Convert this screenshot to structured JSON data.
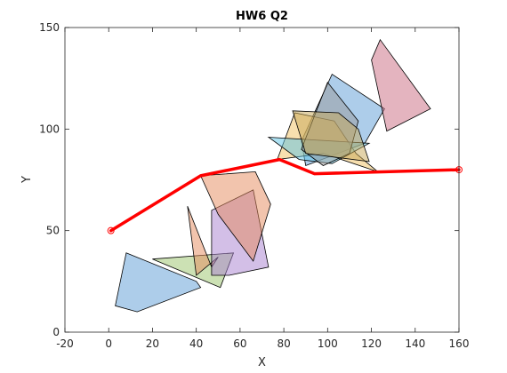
{
  "chart_data": {
    "type": "line",
    "title": "HW6 Q2",
    "xlabel": "X",
    "ylabel": "Y",
    "xlim": [
      -20,
      160
    ],
    "ylim": [
      0,
      150
    ],
    "xticks": [
      -20,
      0,
      20,
      40,
      60,
      80,
      100,
      120,
      140,
      160
    ],
    "yticks": [
      0,
      50,
      100,
      150
    ],
    "grid": false,
    "obstacles": [
      {
        "color": "#5b9bd5",
        "points": [
          [
            8,
            39
          ],
          [
            40,
            25
          ],
          [
            42,
            22
          ],
          [
            13,
            10
          ],
          [
            3,
            13
          ]
        ]
      },
      {
        "color": "#9ac46a",
        "points": [
          [
            20,
            36
          ],
          [
            57,
            39
          ],
          [
            51,
            22
          ]
        ]
      },
      {
        "color": "#e58a5c",
        "points": [
          [
            36,
            62
          ],
          [
            47,
            32
          ],
          [
            50,
            37
          ],
          [
            40,
            28
          ]
        ]
      },
      {
        "color": "#a77fd0",
        "points": [
          [
            47,
            60
          ],
          [
            66,
            70
          ],
          [
            73,
            32
          ],
          [
            55,
            28
          ],
          [
            47,
            28
          ]
        ]
      },
      {
        "color": "#e58a5c",
        "points": [
          [
            42,
            77
          ],
          [
            67,
            79
          ],
          [
            74,
            63
          ],
          [
            66,
            35
          ],
          [
            50,
            58
          ]
        ]
      },
      {
        "color": "#5b9bd5",
        "points": [
          [
            102,
            127
          ],
          [
            126,
            110
          ],
          [
            117,
            93
          ],
          [
            90,
            82
          ],
          [
            88,
            94
          ]
        ]
      },
      {
        "color": "#f0c060",
        "points": [
          [
            85,
            108
          ],
          [
            103,
            104
          ],
          [
            113,
            88
          ],
          [
            123,
            79
          ],
          [
            98,
            88
          ],
          [
            77,
            85
          ]
        ]
      },
      {
        "color": "#5bc3e6",
        "points": [
          [
            73,
            96
          ],
          [
            119,
            93
          ],
          [
            102,
            83
          ],
          [
            87,
            85
          ]
        ]
      },
      {
        "color": "#9a9a9a",
        "points": [
          [
            100,
            123
          ],
          [
            114,
            104
          ],
          [
            110,
            88
          ],
          [
            98,
            82
          ],
          [
            88,
            90
          ]
        ]
      },
      {
        "color": "#c7a855",
        "points": [
          [
            84,
            109
          ],
          [
            105,
            108
          ],
          [
            114,
            100
          ],
          [
            119,
            84
          ],
          [
            90,
            88
          ]
        ]
      },
      {
        "color": "#c96a80",
        "points": [
          [
            124,
            144
          ],
          [
            147,
            110
          ],
          [
            127,
            99
          ],
          [
            120,
            134
          ]
        ]
      }
    ],
    "series": [
      {
        "color": "#ff0000",
        "x": [
          1,
          42,
          78,
          94,
          160
        ],
        "y": [
          50,
          77,
          85,
          78,
          80
        ]
      }
    ],
    "markers": [
      {
        "x": 1,
        "y": 50
      },
      {
        "x": 160,
        "y": 80
      }
    ]
  }
}
